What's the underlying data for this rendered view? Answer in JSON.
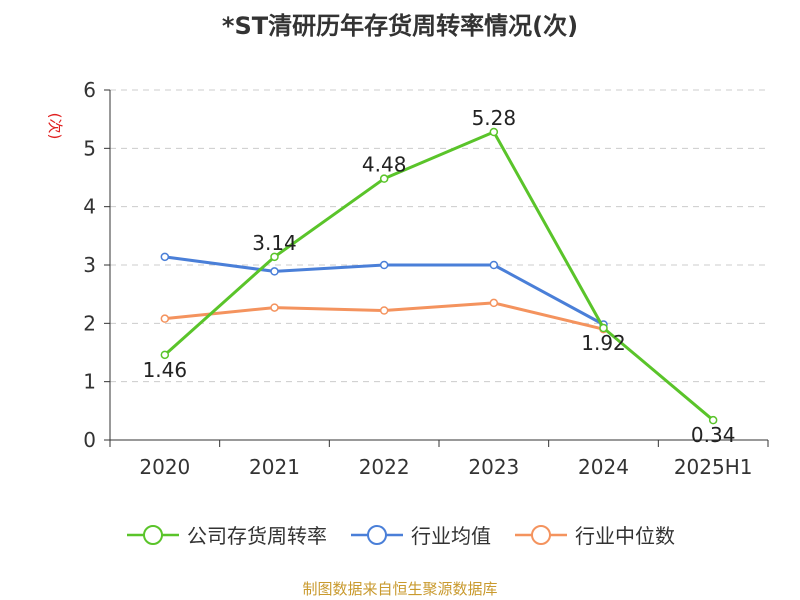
{
  "chart_data": {
    "type": "line",
    "title": "*ST清研历年存货周转率情况(次)",
    "ylabel": "(次)",
    "xlabel": "",
    "categories": [
      "2020",
      "2021",
      "2022",
      "2023",
      "2024",
      "2025H1"
    ],
    "ylim": [
      0,
      6
    ],
    "yticks": [
      "0",
      "1",
      "2",
      "3",
      "4",
      "5",
      "6"
    ],
    "grid": true,
    "legend_position": "bottom",
    "series": [
      {
        "name": "公司存货周转率",
        "color": "#5ac42a",
        "values": [
          1.46,
          3.14,
          4.48,
          5.28,
          1.92,
          0.34
        ],
        "labels": [
          "1.46",
          "3.14",
          "4.48",
          "5.28",
          "1.92",
          "0.34"
        ]
      },
      {
        "name": "行业均值",
        "color": "#4a7fd8",
        "values": [
          3.14,
          2.89,
          3.0,
          3.0,
          1.98,
          null
        ]
      },
      {
        "name": "行业中位数",
        "color": "#f4935e",
        "values": [
          2.08,
          2.27,
          2.22,
          2.35,
          1.9,
          null
        ]
      }
    ]
  },
  "source": "制图数据来自恒生聚源数据库",
  "colors": {
    "axis": "#333333",
    "grid": "#cccccc",
    "ylabel": "#e02020"
  }
}
